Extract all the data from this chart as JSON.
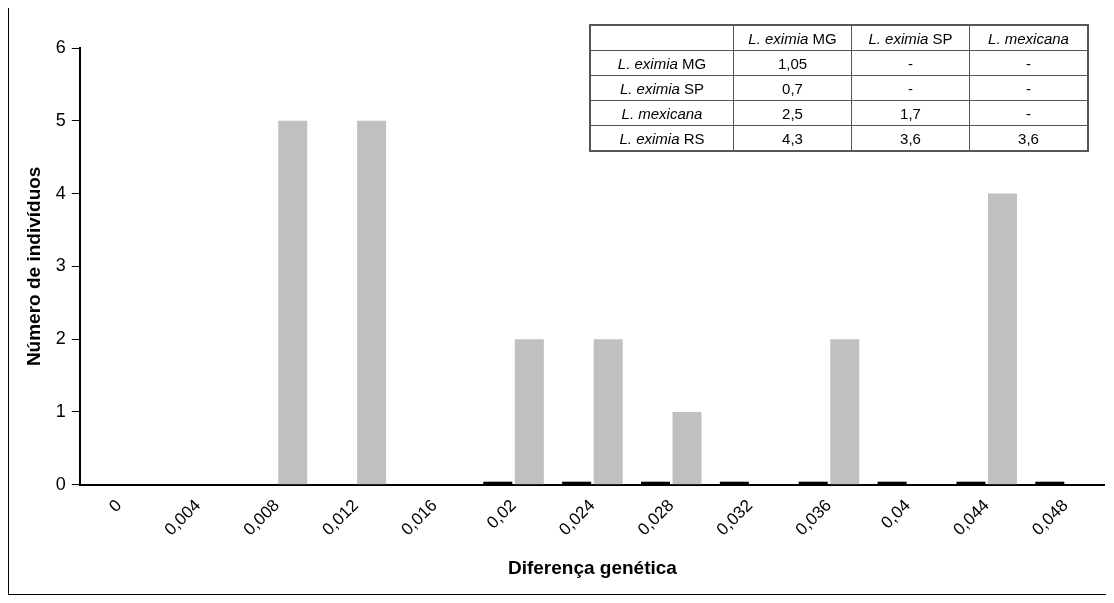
{
  "chart_data": {
    "type": "bar",
    "xlabel": "Diferença genética",
    "ylabel": "Número de indivíduos",
    "categories": [
      "0",
      "0,004",
      "0,008",
      "0,012",
      "0,016",
      "0,02",
      "0,024",
      "0,028",
      "0,032",
      "0,036",
      "0,04",
      "0,044",
      "0,048"
    ],
    "series": [
      {
        "color": "#000000",
        "values": [
          null,
          null,
          null,
          null,
          null,
          0,
          0,
          0,
          0,
          0,
          0,
          0,
          0
        ]
      },
      {
        "color": "#c0c0c0",
        "values": [
          null,
          null,
          5,
          5,
          null,
          2,
          2,
          1,
          null,
          2,
          null,
          4,
          null
        ]
      }
    ],
    "ylim": [
      0,
      6
    ],
    "yticks": [
      0,
      1,
      2,
      3,
      4,
      5,
      6
    ],
    "grid": false,
    "legend": false,
    "annotations": [
      "L. eximia MG",
      "L. eximia SP",
      "L. mexicana",
      "L. eximia MG",
      "1,05",
      "-",
      "-",
      "L. eximia SP",
      "0,7",
      "-",
      "-",
      "L. mexicana",
      "2,5",
      "1,7",
      "-",
      "L. eximia RS",
      "4,3",
      "3,6",
      "3,6"
    ]
  }
}
